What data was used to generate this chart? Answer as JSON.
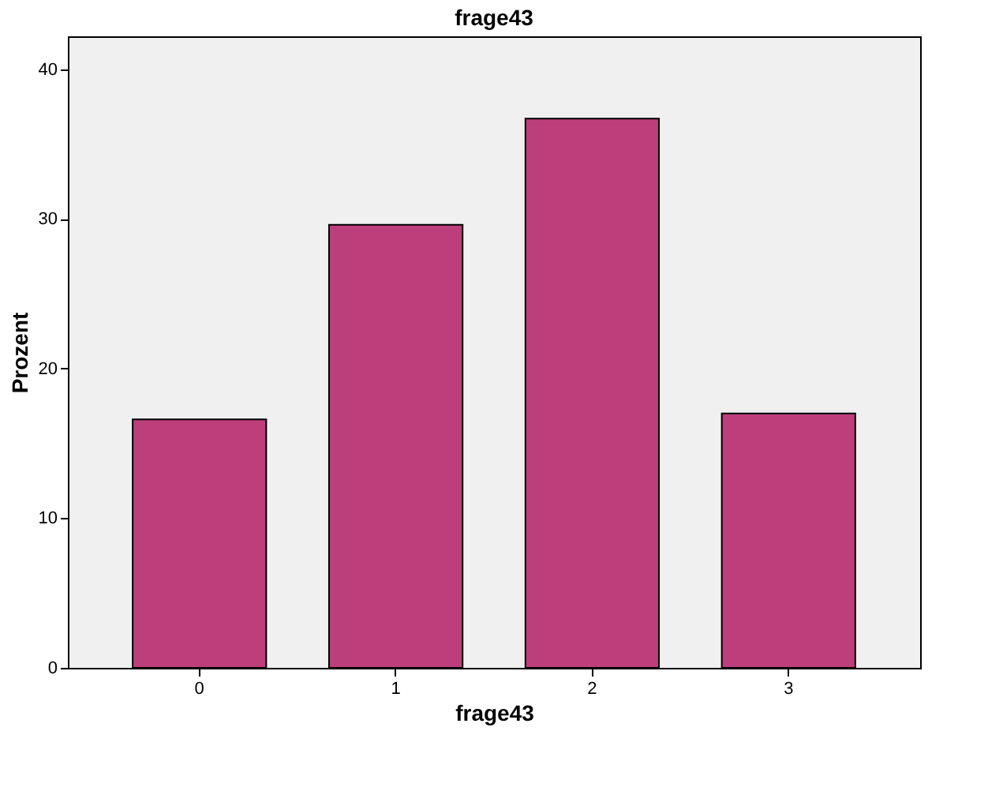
{
  "chart_data": {
    "type": "bar",
    "title": "frage43",
    "xlabel": "frage43",
    "ylabel": "Prozent",
    "categories": [
      "0",
      "1",
      "2",
      "3"
    ],
    "values": [
      16.6,
      29.6,
      36.7,
      17.0
    ],
    "color": "#bc3f7c",
    "ylim": [
      0,
      42.2
    ],
    "yticks": [
      0,
      10,
      20,
      30,
      40
    ],
    "grid": false
  }
}
